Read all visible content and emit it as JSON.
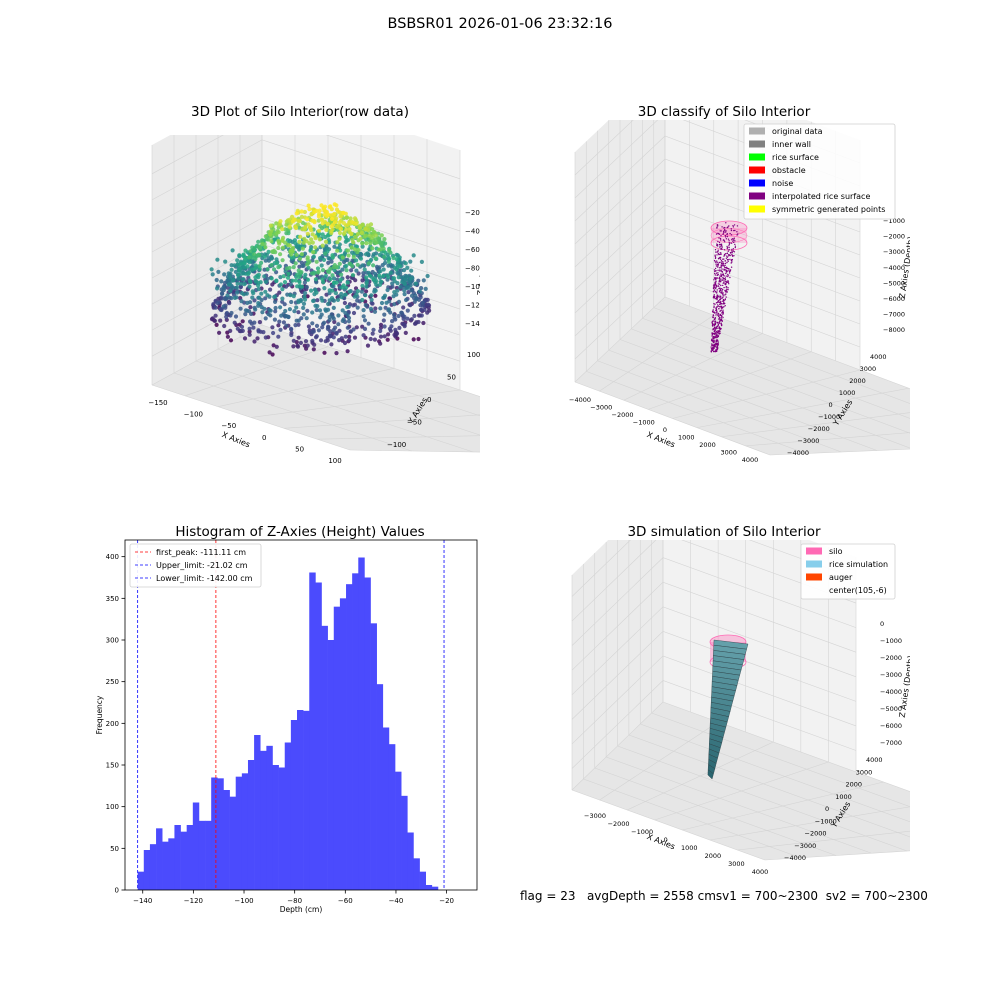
{
  "suptitle": "BSBSR01 2026-01-06 23:32:16",
  "footer": {
    "flag": "flag = 23",
    "avg": "avgDepth = 2558 cm",
    "sv1": "sv1 = 700~2300",
    "sv2": "sv2 = 700~2300"
  },
  "colors": {
    "viridis": [
      "#440154",
      "#414487",
      "#2a788e",
      "#22a884",
      "#7ad151",
      "#fde725"
    ],
    "histogram": "#4b4bfd",
    "first_peak_line": "#ff0000",
    "limit_line": "#0000ff",
    "silo": "#ff69b4",
    "rice_simulation": "#87ceeb",
    "rice_points": "#800080",
    "surface": "#4a8a94"
  },
  "chart_data": [
    {
      "type": "scatter",
      "projection": "3d",
      "title": "3D Plot of Silo Interior(row data)",
      "xlabel": "X Axies",
      "ylabel": "Y Axies",
      "zlabel": "Z Axies (Depth)",
      "xticks": [
        "−150",
        "−100",
        "−50",
        "0",
        "50",
        "100"
      ],
      "yticks": [
        "−100",
        "−50",
        "0",
        "50",
        "100"
      ],
      "zticks": [
        "−20",
        "−40",
        "−60",
        "−80",
        "−100",
        "−120",
        "−140"
      ],
      "xlim": [
        -160,
        140
      ],
      "ylim": [
        -130,
        110
      ],
      "zlim": [
        -150,
        -15
      ],
      "colormap": "viridis",
      "note_colors": "points colored by depth"
    },
    {
      "type": "scatter",
      "projection": "3d",
      "title": "3D classify of Silo Interior",
      "xlabel": "X Axies",
      "ylabel": "Y Axies",
      "zlabel": "Z Axies (Depth)",
      "xticks": [
        "−4000",
        "−3000",
        "−2000",
        "−1000",
        "0",
        "1000",
        "2000",
        "3000",
        "4000"
      ],
      "yticks": [
        "−4000",
        "−3000",
        "−2000",
        "−1000",
        "0",
        "1000",
        "2000",
        "3000",
        "4000"
      ],
      "zticks": [
        "−1000",
        "−2000",
        "−3000",
        "−4000",
        "−5000",
        "−6000",
        "−7000",
        "−8000"
      ],
      "legend_position": "upper right",
      "legend": [
        {
          "label": "original data",
          "color": "#b0b0b0"
        },
        {
          "label": "inner wall",
          "color": "#808080"
        },
        {
          "label": "rice surface",
          "color": "#00ff00"
        },
        {
          "label": "obstacle",
          "color": "#ff0000"
        },
        {
          "label": "noise",
          "color": "#0000ff"
        },
        {
          "label": "interpolated rice surface",
          "color": "#800080"
        },
        {
          "label": "symmetric generated points",
          "color": "#ffff00"
        }
      ]
    },
    {
      "type": "bar",
      "title": "Histogram of Z-Axies (Height) Values",
      "xlabel": "Depth (cm)",
      "ylabel": "Frequency",
      "xlim": [
        -147,
        -8
      ],
      "ylim": [
        0,
        420
      ],
      "xticks": [
        -140,
        -120,
        -100,
        -80,
        -60,
        -40,
        -20
      ],
      "yticks": [
        0,
        50,
        100,
        150,
        200,
        250,
        300,
        350,
        400
      ],
      "bin_start": -142.0,
      "bin_width": 2.42,
      "values": [
        22,
        48,
        55,
        74,
        58,
        62,
        78,
        70,
        78,
        105,
        83,
        83,
        135,
        134,
        120,
        112,
        136,
        140,
        156,
        186,
        167,
        173,
        150,
        147,
        177,
        204,
        216,
        215,
        381,
        369,
        317,
        300,
        340,
        350,
        367,
        380,
        399,
        375,
        320,
        247,
        195,
        175,
        142,
        113,
        69,
        38,
        22,
        6,
        4
      ],
      "lines": [
        {
          "label": "first_peak: -111.11 cm",
          "x": -111.11,
          "style": "dashed",
          "color": "red"
        },
        {
          "label": "Upper_limit: -21.02 cm",
          "x": -21.02,
          "style": "dashed",
          "color": "blue"
        },
        {
          "label": "Lower_limit: -142.00 cm",
          "x": -142.0,
          "style": "dashed",
          "color": "blue"
        }
      ],
      "legend_position": "upper left"
    },
    {
      "type": "area",
      "projection": "3d",
      "title": "3D simulation of Silo Interior",
      "xlabel": "X Axies",
      "ylabel": "Y Axies",
      "zlabel": "Z Axies (Depth)",
      "xticks": [
        "−3000",
        "−2000",
        "−1000",
        "0",
        "1000",
        "2000",
        "3000",
        "4000"
      ],
      "yticks": [
        "−4000",
        "−3000",
        "−2000",
        "−1000",
        "0",
        "1000",
        "2000",
        "3000",
        "4000"
      ],
      "zticks": [
        "0",
        "−1000",
        "−2000",
        "−3000",
        "−4000",
        "−5000",
        "−6000",
        "−7000"
      ],
      "legend_position": "upper right",
      "legend": [
        {
          "label": "silo",
          "color": "#ff69b4"
        },
        {
          "label": "rice simulation",
          "color": "#87ceeb"
        },
        {
          "label": "auger",
          "color": "#ff4500"
        },
        {
          "label": "center(105,-6)",
          "color": "none"
        }
      ]
    }
  ]
}
